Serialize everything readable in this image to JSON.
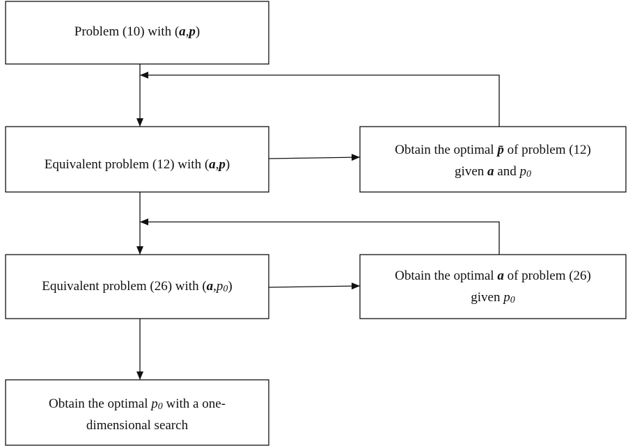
{
  "nodes": [
    {
      "lines": [
        [
          "Problem (10) with (",
          "a",
          ",",
          "p",
          ")"
        ]
      ]
    },
    {
      "lines": [
        [
          "Equivalent problem (12) with (",
          "a",
          ",",
          "p",
          ")"
        ]
      ]
    },
    {
      "lines": [
        [
          "Obtain the optimal ",
          "p̄",
          " of problem (12)"
        ],
        [
          "given ",
          "a",
          " and ",
          "p",
          "0"
        ]
      ]
    },
    {
      "lines": [
        [
          "Equivalent problem (26) with (",
          "a",
          ",",
          "p",
          "0",
          ")"
        ]
      ]
    },
    {
      "lines": [
        [
          "Obtain the optimal ",
          "a",
          " of problem (26)"
        ],
        [
          "given ",
          "p",
          "0"
        ]
      ]
    },
    {
      "lines": [
        [
          "Obtain the optimal ",
          "p",
          "0",
          " with a one-"
        ],
        [
          "dimensional search"
        ]
      ]
    }
  ]
}
